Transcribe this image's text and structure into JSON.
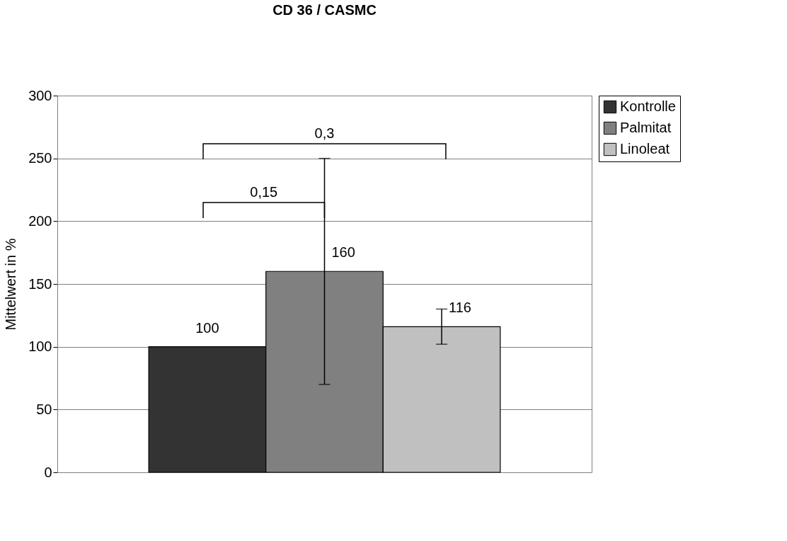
{
  "chart_data": {
    "type": "bar",
    "title": "CD 36 / CASMC",
    "ylabel": "Mittelwert in %",
    "categories": [
      null
    ],
    "series": [
      {
        "name": "Kontrolle",
        "color": "#333333",
        "values": [
          100
        ],
        "errors": [
          null
        ]
      },
      {
        "name": "Palmitat",
        "color": "#808080",
        "values": [
          160
        ],
        "errors": [
          90
        ]
      },
      {
        "name": "Linoleat",
        "color": "#c0c0c0",
        "values": [
          116
        ],
        "errors": [
          14
        ]
      }
    ],
    "ylim": [
      0,
      300
    ],
    "yticks": [
      0,
      50,
      100,
      150,
      200,
      250,
      300
    ],
    "grid": "y",
    "legend": "right",
    "data_labels": true,
    "annotations": [
      "0,3",
      "0,15"
    ]
  }
}
